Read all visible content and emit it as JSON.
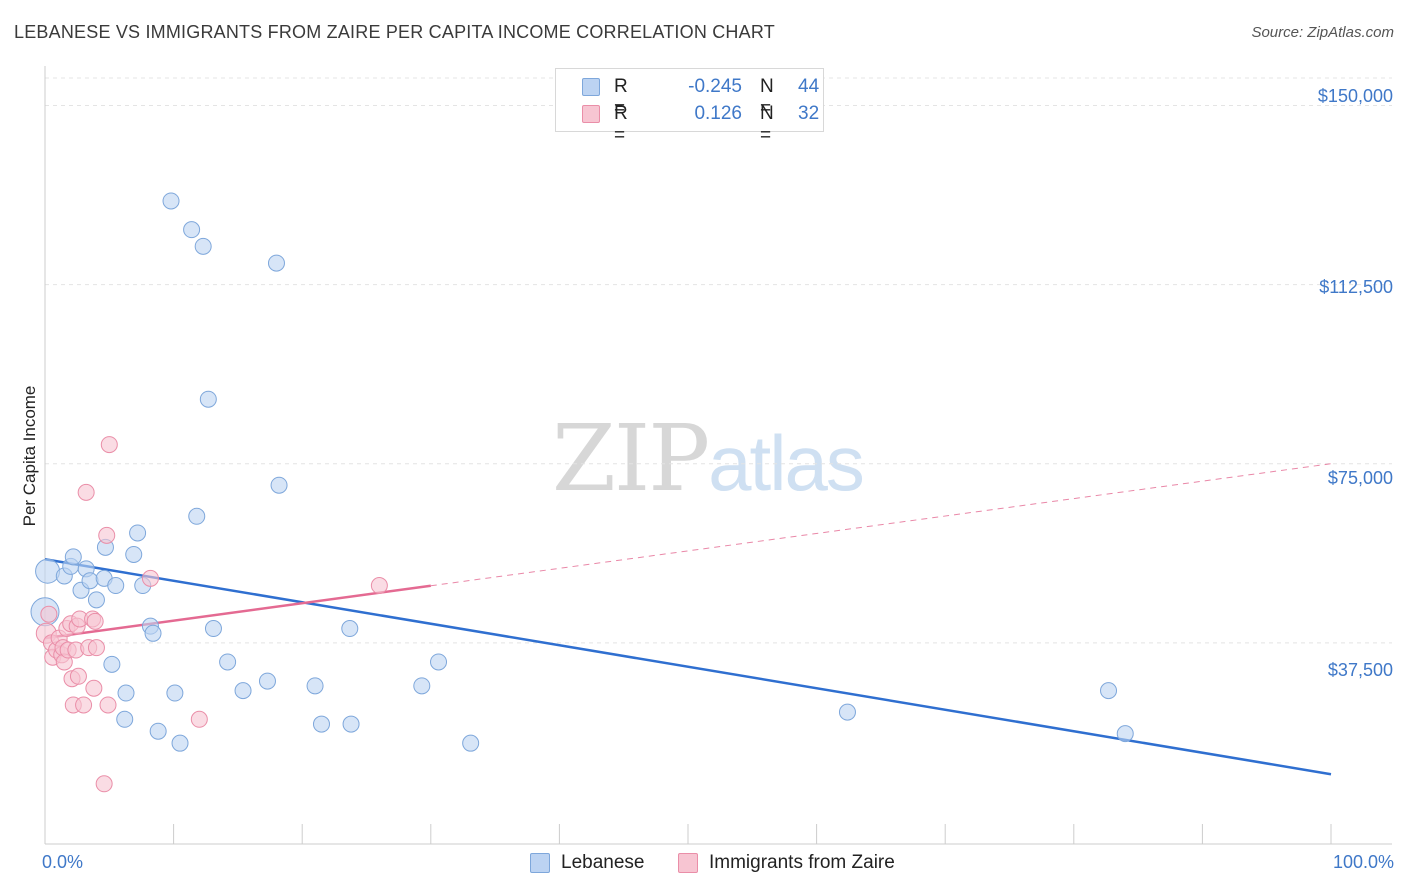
{
  "title": "LEBANESE VS IMMIGRANTS FROM ZAIRE PER CAPITA INCOME CORRELATION CHART",
  "source": "Source: ZipAtlas.com",
  "watermark": {
    "zip": "ZIP",
    "atlas": "atlas"
  },
  "colors": {
    "blue_fill": "#bcd3f2",
    "blue_stroke": "#7ea7db",
    "blue_line": "#2f6fd0",
    "pink_fill": "#f7c5d2",
    "pink_stroke": "#ea8ea8",
    "pink_line": "#e46a92",
    "tick_text": "#3f78c8",
    "grid": "#e4e4e4"
  },
  "legend": {
    "rows": [
      {
        "r_label": "R =",
        "r_value": "-0.245",
        "n_label": "N =",
        "n_value": "44"
      },
      {
        "r_label": "R =",
        "r_value": "0.126",
        "n_label": "N =",
        "n_value": "32"
      }
    ]
  },
  "bottom_legend": {
    "series1": "Lebanese",
    "series2": "Immigrants from Zaire"
  },
  "chart_data": {
    "type": "scatter",
    "title": "LEBANESE VS IMMIGRANTS FROM ZAIRE PER CAPITA INCOME CORRELATION CHART",
    "xlabel": "",
    "ylabel": "Per Capita Income",
    "xlim": [
      0,
      100
    ],
    "ylim": [
      0,
      157000
    ],
    "x_tick_labels": [
      "0.0%",
      "100.0%"
    ],
    "y_ticks": [
      37500,
      75000,
      112500,
      150000
    ],
    "y_tick_labels": [
      "$37,500",
      "$75,000",
      "$112,500",
      "$150,000"
    ],
    "series": [
      {
        "name": "Lebanese",
        "r": -0.245,
        "n": 44,
        "trend": {
          "x0": 0,
          "y0": 55000,
          "x1": 100,
          "y1": 10000,
          "dash_from": null
        },
        "points": [
          [
            0.2,
            52500,
            12
          ],
          [
            0,
            44000,
            14
          ],
          [
            1.5,
            51500,
            8
          ],
          [
            2,
            53500,
            8
          ],
          [
            2.2,
            55500,
            8
          ],
          [
            3.2,
            53000,
            8
          ],
          [
            2.8,
            48500,
            8
          ],
          [
            3.5,
            50500,
            8
          ],
          [
            4,
            46500,
            8
          ],
          [
            4.6,
            51000,
            8
          ],
          [
            4.7,
            57500,
            8
          ],
          [
            5.5,
            49500,
            8
          ],
          [
            5.2,
            33000,
            8
          ],
          [
            6.3,
            27000,
            8
          ],
          [
            6.2,
            21500,
            8
          ],
          [
            6.9,
            56000,
            8
          ],
          [
            7.2,
            60500,
            8
          ],
          [
            7.6,
            49500,
            8
          ],
          [
            8.2,
            41000,
            8
          ],
          [
            8.4,
            39500,
            8
          ],
          [
            8.8,
            19000,
            8
          ],
          [
            9.8,
            130000,
            8
          ],
          [
            10.1,
            27000,
            8
          ],
          [
            10.5,
            16500,
            8
          ],
          [
            11.4,
            124000,
            8
          ],
          [
            11.8,
            64000,
            8
          ],
          [
            12.3,
            120500,
            8
          ],
          [
            12.7,
            88500,
            8
          ],
          [
            13.1,
            40500,
            8
          ],
          [
            14.2,
            33500,
            8
          ],
          [
            15.4,
            27500,
            8
          ],
          [
            17.3,
            29500,
            8
          ],
          [
            18,
            117000,
            8
          ],
          [
            18.2,
            70500,
            8
          ],
          [
            21,
            28500,
            8
          ],
          [
            21.5,
            20500,
            8
          ],
          [
            23.7,
            40500,
            8
          ],
          [
            23.8,
            20500,
            8
          ],
          [
            29.3,
            28500,
            8
          ],
          [
            30.6,
            33500,
            8
          ],
          [
            33.1,
            16500,
            8
          ],
          [
            62.4,
            23000,
            8
          ],
          [
            82.7,
            27500,
            8
          ],
          [
            84,
            18500,
            8
          ]
        ]
      },
      {
        "name": "Immigrants from Zaire",
        "r": 0.126,
        "n": 32,
        "trend": {
          "x0": 0,
          "y0": 38500,
          "x1": 100,
          "y1": 75000,
          "solid_until": 30
        },
        "points": [
          [
            0.1,
            39500,
            10
          ],
          [
            0.3,
            43500,
            8
          ],
          [
            0.5,
            37500,
            8
          ],
          [
            0.6,
            34500,
            8
          ],
          [
            0.9,
            36000,
            8
          ],
          [
            1.1,
            38500,
            8
          ],
          [
            1.3,
            35000,
            8
          ],
          [
            1.4,
            36500,
            8
          ],
          [
            1.5,
            33500,
            8
          ],
          [
            1.7,
            40500,
            8
          ],
          [
            1.8,
            36000,
            8
          ],
          [
            2,
            41500,
            8
          ],
          [
            2.1,
            30000,
            8
          ],
          [
            2.2,
            24500,
            8
          ],
          [
            2.4,
            36000,
            8
          ],
          [
            2.5,
            41000,
            8
          ],
          [
            2.6,
            30500,
            8
          ],
          [
            2.7,
            42500,
            8
          ],
          [
            3,
            24500,
            8
          ],
          [
            3.2,
            69000,
            8
          ],
          [
            3.4,
            36500,
            8
          ],
          [
            3.7,
            42500,
            8
          ],
          [
            3.8,
            28000,
            8
          ],
          [
            3.9,
            42000,
            8
          ],
          [
            4,
            36500,
            8
          ],
          [
            4.6,
            8000,
            8
          ],
          [
            4.8,
            60000,
            8
          ],
          [
            4.9,
            24500,
            8
          ],
          [
            5,
            79000,
            8
          ],
          [
            8.2,
            51000,
            8
          ],
          [
            12,
            21500,
            8
          ],
          [
            26,
            49500,
            8
          ]
        ]
      }
    ]
  }
}
